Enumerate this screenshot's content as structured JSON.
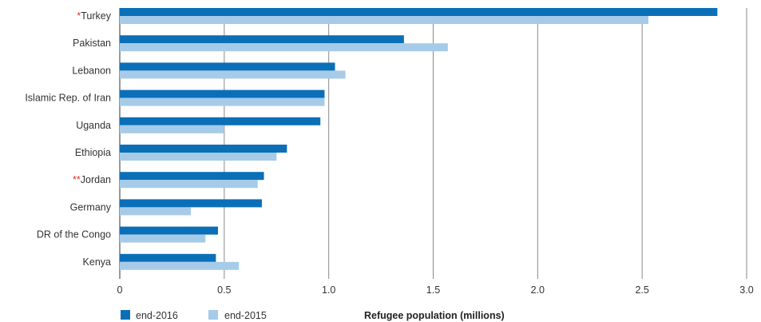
{
  "chart_data": {
    "type": "bar",
    "orientation": "horizontal",
    "categories": [
      "Turkey",
      "Pakistan",
      "Lebanon",
      "Islamic Rep. of Iran",
      "Uganda",
      "Ethiopia",
      "Jordan",
      "Germany",
      "DR of the Congo",
      "Kenya"
    ],
    "category_markers": [
      "*",
      "",
      "",
      "",
      "",
      "",
      "**",
      "",
      "",
      ""
    ],
    "series": [
      {
        "name": "end-2016",
        "color": "#0b6fb8",
        "values": [
          2.86,
          1.36,
          1.03,
          0.98,
          0.96,
          0.8,
          0.69,
          0.68,
          0.47,
          0.46
        ]
      },
      {
        "name": "end-2015",
        "color": "#a6cbe8",
        "values": [
          2.53,
          1.57,
          1.08,
          0.98,
          0.5,
          0.75,
          0.66,
          0.34,
          0.41,
          0.57
        ]
      }
    ],
    "xlim": [
      0,
      3.0
    ],
    "xticks": [
      "0",
      "0.5",
      "1.0",
      "1.5",
      "2.0",
      "2.5",
      "3.0"
    ],
    "xtick_values": [
      0,
      0.5,
      1.0,
      1.5,
      2.0,
      2.5,
      3.0
    ],
    "xlabel": "Refugee population (millions)",
    "ylabel": "",
    "title": "",
    "grid": "vertical",
    "legend_position": "bottom-left"
  }
}
